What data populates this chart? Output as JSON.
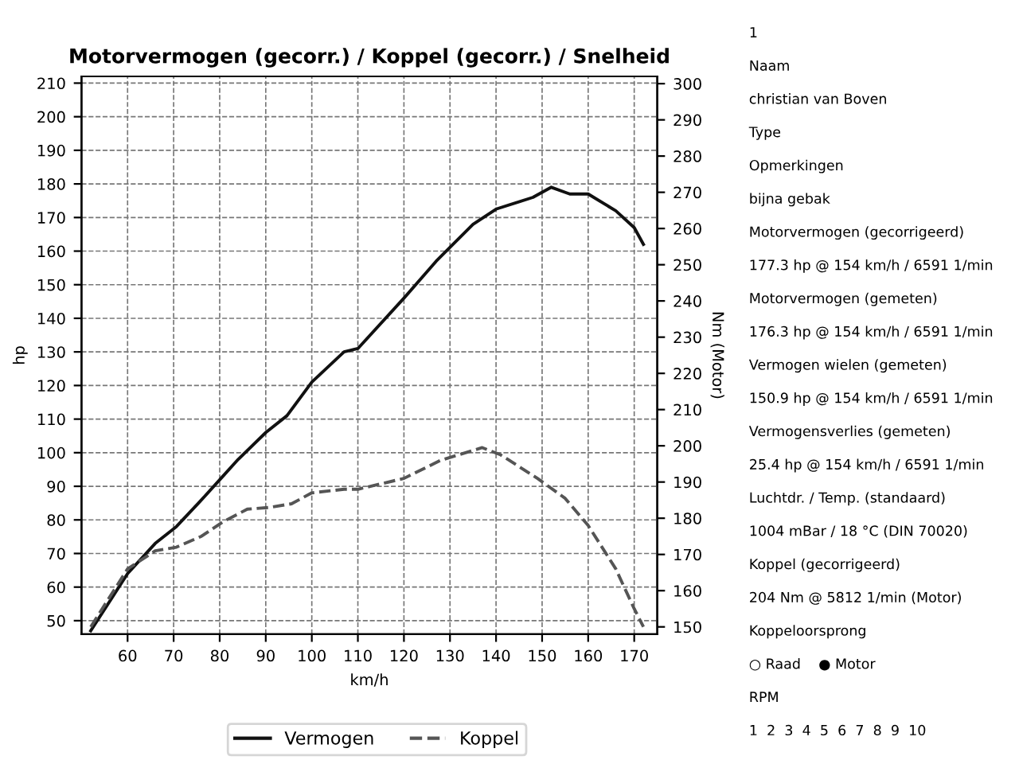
{
  "chart_data": {
    "type": "line",
    "title": "Motorvermogen (gecorr.) / Koppel (gecorr.) / Snelheid",
    "xlabel": "km/h",
    "ylabel": "hp",
    "y2label": "Nm (Motor)",
    "xlim": [
      50,
      175
    ],
    "xticks": [
      60,
      70,
      80,
      90,
      100,
      110,
      120,
      130,
      140,
      150,
      160,
      170
    ],
    "ylim": [
      46,
      212
    ],
    "yticks": [
      50,
      60,
      70,
      80,
      90,
      100,
      110,
      120,
      130,
      140,
      150,
      160,
      170,
      180,
      190,
      200,
      210
    ],
    "y2lim": [
      148,
      302
    ],
    "y2ticks": [
      150,
      160,
      170,
      180,
      190,
      200,
      210,
      220,
      230,
      240,
      250,
      260,
      270,
      280,
      290,
      300
    ],
    "grid": true,
    "legend": "bottom",
    "series": [
      {
        "name": "Vermogen",
        "color": "#111111",
        "line_style": "solid",
        "x": [
          52,
          60,
          66,
          70.6,
          75.4,
          80.7,
          84,
          90,
          94.6,
          100,
          107,
          110,
          120,
          127,
          135,
          140,
          148,
          152,
          156,
          160,
          166,
          170,
          172
        ],
        "values": [
          47,
          64,
          73,
          78,
          85,
          93,
          98,
          106,
          111,
          121,
          130,
          131,
          146,
          157,
          168,
          172.5,
          176,
          179,
          177,
          177,
          172,
          167,
          162
        ]
      },
      {
        "name": "Koppel",
        "color": "#555555",
        "line_style": "dashed",
        "axis": "y2",
        "x": [
          52,
          60,
          66,
          70.6,
          76,
          80.7,
          86,
          91,
          95.6,
          100,
          107,
          110,
          120,
          128,
          137,
          141,
          149,
          155,
          160,
          166,
          170,
          172
        ],
        "values": [
          150,
          166,
          171,
          172,
          175,
          179,
          182.5,
          183,
          184,
          187,
          188,
          188,
          191,
          196,
          199.5,
          197.5,
          191,
          185.5,
          178,
          166,
          155,
          150
        ]
      }
    ],
    "annotations": [
      "1",
      "Naam",
      "christian van Boven",
      "Type",
      "Opmerkingen",
      "bijna gebak",
      "Motorvermogen (gecorrigeerd)",
      "177.3 hp @ 154 km/h / 6591 1/min",
      "Motorvermogen (gemeten)",
      "176.3 hp @ 154 km/h / 6591 1/min",
      "Vermogen wielen (gemeten)",
      "150.9 hp @ 154 km/h / 6591 1/min",
      "Vermogensverlies (gemeten)",
      "25.4 hp @ 154 km/h / 6591 1/min",
      "Luchtdr. / Temp. (standaard)",
      "1004 mBar / 18 °C (DIN 70020)",
      "Koppel (gecorrigeerd)",
      "204 Nm @ 5812 1/min (Motor)",
      "Koppeloorsprong",
      "○ Raad    ● Motor",
      "RPM",
      "1  2  3  4  5  6  7  8  9  10"
    ]
  }
}
